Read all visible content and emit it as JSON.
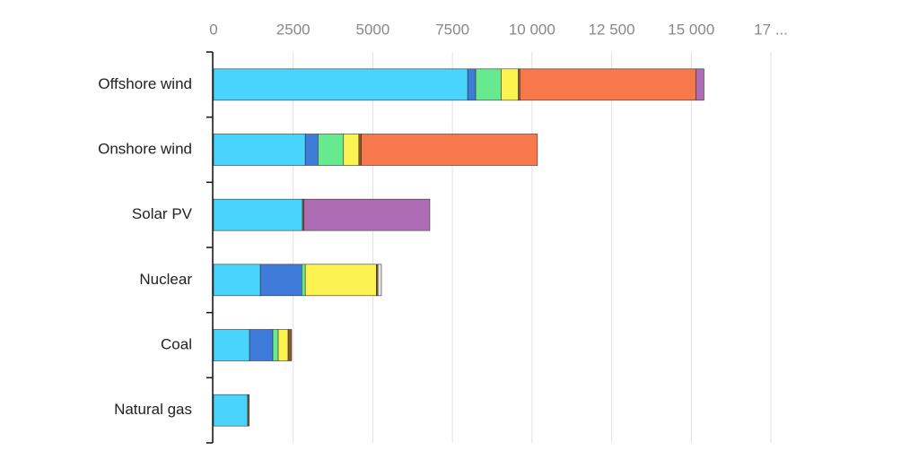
{
  "chart_data": {
    "type": "stacked-bar-horizontal",
    "categories": [
      "Offshore wind",
      "Onshore wind",
      "Solar PV",
      "Nuclear",
      "Coal",
      "Natural gas"
    ],
    "series": [
      {
        "color": "#48d4fc",
        "values": [
          7980,
          2880,
          2790,
          1470,
          1130,
          1070
        ]
      },
      {
        "color": "#3f7bd9",
        "values": [
          250,
          400,
          0,
          1300,
          730,
          0
        ]
      },
      {
        "color": "#67ea8f",
        "values": [
          800,
          800,
          0,
          110,
          170,
          0
        ]
      },
      {
        "color": "#fdf350",
        "values": [
          540,
          480,
          0,
          2230,
          310,
          0
        ]
      },
      {
        "color": "#8a5a2e",
        "values": [
          50,
          80,
          50,
          50,
          110,
          50
        ]
      },
      {
        "color": "#f7784a",
        "values": [
          5530,
          5530,
          0,
          0,
          0,
          0
        ]
      },
      {
        "color": "#ad6cb4",
        "values": [
          250,
          0,
          3950,
          0,
          0,
          0
        ]
      },
      {
        "color": "#e4e4e4",
        "values": [
          0,
          0,
          0,
          110,
          0,
          0
        ]
      }
    ],
    "xlim": [
      0,
      17500
    ],
    "xticks": [
      0,
      2500,
      5000,
      7500,
      {
        "value": 10000,
        "label": "10 000"
      },
      {
        "value": 12500,
        "label": "12 500"
      },
      {
        "value": 15000,
        "label": "15 000"
      },
      {
        "value": 17500,
        "label": "17 ..."
      }
    ],
    "grid": true
  }
}
